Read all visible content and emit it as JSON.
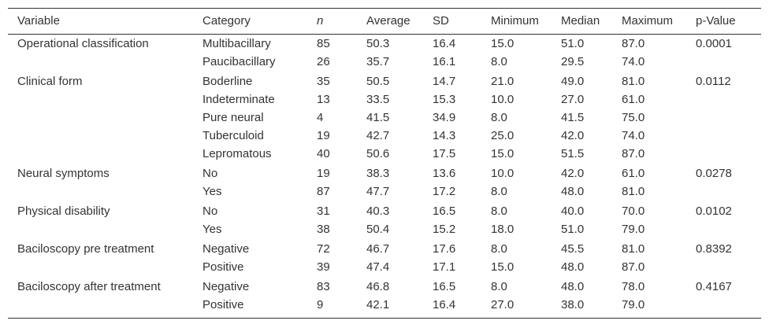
{
  "table": {
    "headers": [
      "Variable",
      "Category",
      "n",
      "Average",
      "SD",
      "Minimum",
      "Median",
      "Maximum",
      "p-Value"
    ],
    "groups": [
      {
        "variable": "Operational classification",
        "p_value": "0.0001",
        "rows": [
          [
            "Multibacillary",
            "85",
            "50.3",
            "16.4",
            "15.0",
            "51.0",
            "87.0"
          ],
          [
            "Paucibacillary",
            "26",
            "35.7",
            "16.1",
            "8.0",
            "29.5",
            "74.0"
          ]
        ]
      },
      {
        "variable": "Clinical form",
        "p_value": "0.0112",
        "rows": [
          [
            "Boderline",
            "35",
            "50.5",
            "14.7",
            "21.0",
            "49.0",
            "81.0"
          ],
          [
            "Indeterminate",
            "13",
            "33.5",
            "15.3",
            "10.0",
            "27.0",
            "61.0"
          ],
          [
            "Pure neural",
            "4",
            "41.5",
            "34.9",
            "8.0",
            "41.5",
            "75.0"
          ],
          [
            "Tuberculoid",
            "19",
            "42.7",
            "14.3",
            "25.0",
            "42.0",
            "74.0"
          ],
          [
            "Lepromatous",
            "40",
            "50.6",
            "17.5",
            "15.0",
            "51.5",
            "87.0"
          ]
        ]
      },
      {
        "variable": "Neural symptoms",
        "p_value": "0.0278",
        "rows": [
          [
            "No",
            "19",
            "38.3",
            "13.6",
            "10.0",
            "42.0",
            "61.0"
          ],
          [
            "Yes",
            "87",
            "47.7",
            "17.2",
            "8.0",
            "48.0",
            "81.0"
          ]
        ]
      },
      {
        "variable": "Physical disability",
        "p_value": "0.0102",
        "rows": [
          [
            "No",
            "31",
            "40.3",
            "16.5",
            "8.0",
            "40.0",
            "70.0"
          ],
          [
            "Yes",
            "38",
            "50.4",
            "15.2",
            "18.0",
            "51.0",
            "79.0"
          ]
        ]
      },
      {
        "variable": "Baciloscopy pre treatment",
        "p_value": "0.8392",
        "rows": [
          [
            "Negative",
            "72",
            "46.7",
            "17.6",
            "8.0",
            "45.5",
            "81.0"
          ],
          [
            "Positive",
            "39",
            "47.4",
            "17.1",
            "15.0",
            "48.0",
            "87.0"
          ]
        ]
      },
      {
        "variable": "Baciloscopy after treatment",
        "p_value": "0.4167",
        "rows": [
          [
            "Negative",
            "83",
            "46.8",
            "16.5",
            "8.0",
            "48.0",
            "78.0"
          ],
          [
            "Positive",
            "9",
            "42.1",
            "16.4",
            "27.0",
            "38.0",
            "79.0"
          ]
        ]
      }
    ]
  }
}
